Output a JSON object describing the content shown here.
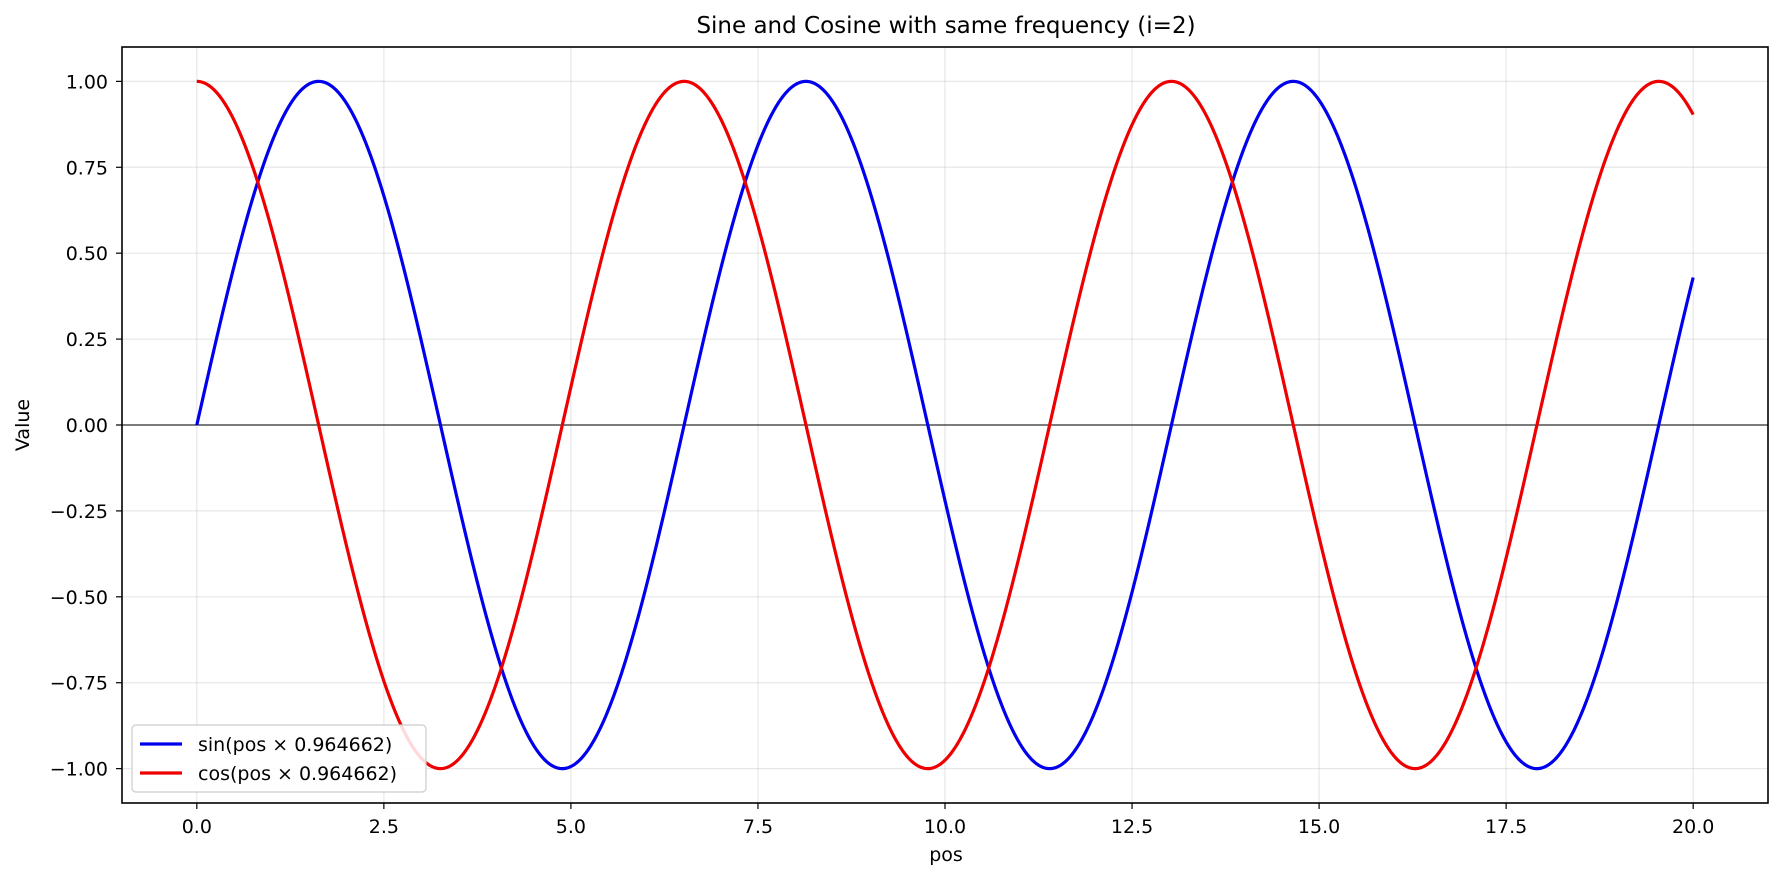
{
  "chart_data": {
    "type": "line",
    "title": "Sine and Cosine with same frequency (i=2)",
    "xlabel": "pos",
    "ylabel": "Value",
    "xlim": [
      -1.0,
      21.0
    ],
    "ylim": [
      -1.1,
      1.1
    ],
    "x_range": [
      0,
      20
    ],
    "xticks": [
      0.0,
      2.5,
      5.0,
      7.5,
      10.0,
      12.5,
      15.0,
      17.5,
      20.0
    ],
    "xtick_labels": [
      "0.0",
      "2.5",
      "5.0",
      "7.5",
      "10.0",
      "12.5",
      "15.0",
      "17.5",
      "20.0"
    ],
    "yticks": [
      1.0,
      0.75,
      0.5,
      0.25,
      0.0,
      -0.25,
      -0.5,
      -0.75,
      -1.0
    ],
    "ytick_labels": [
      "1.00",
      "0.75",
      "0.50",
      "0.25",
      "0.00",
      "−0.25",
      "−0.50",
      "−0.75",
      "−1.00"
    ],
    "grid": true,
    "zero_line": true,
    "legend_position": "lower-left",
    "series": [
      {
        "name": "sin(pos × 0.964662)",
        "function": "sin",
        "frequency": 0.964662,
        "color": "#0000ee"
      },
      {
        "name": "cos(pos × 0.964662)",
        "function": "cos",
        "frequency": 0.964662,
        "color": "#ee0000"
      }
    ]
  }
}
